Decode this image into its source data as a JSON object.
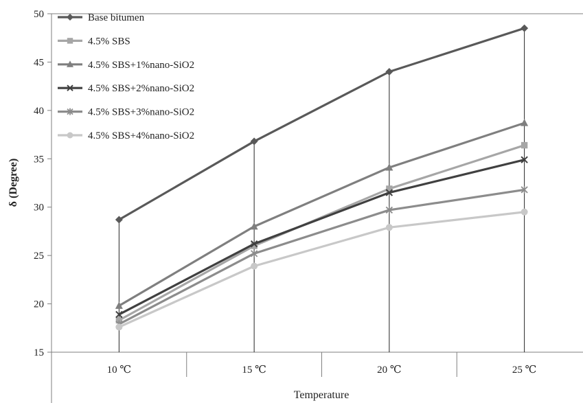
{
  "chart_data": {
    "type": "line",
    "title": "",
    "xlabel": "Temperature",
    "ylabel": "δ (Degree)",
    "categories": [
      "10 ℃",
      "15 ℃",
      "20 ℃",
      "25 ℃"
    ],
    "ylim": [
      15,
      50
    ],
    "yticks": [
      15,
      20,
      25,
      30,
      35,
      40,
      45,
      50
    ],
    "drop_lines": true,
    "legend_position": "top-left",
    "series": [
      {
        "name": "Base bitumen",
        "values": [
          28.7,
          36.8,
          44.0,
          48.5
        ],
        "color": "#595959",
        "marker": "diamond"
      },
      {
        "name": "4.5% SBS",
        "values": [
          18.3,
          26.0,
          31.9,
          36.4
        ],
        "color": "#a6a6a6",
        "marker": "square"
      },
      {
        "name": "4.5% SBS+1%nano-SiO2",
        "values": [
          19.8,
          28.0,
          34.1,
          38.7
        ],
        "color": "#7f7f7f",
        "marker": "triangle"
      },
      {
        "name": "4.5% SBS+2%nano-SiO2",
        "values": [
          18.9,
          26.2,
          31.5,
          34.9
        ],
        "color": "#404040",
        "marker": "x"
      },
      {
        "name": "4.5% SBS+3%nano-SiO2",
        "values": [
          17.9,
          25.2,
          29.7,
          31.8
        ],
        "color": "#8c8c8c",
        "marker": "star"
      },
      {
        "name": "4.5% SBS+4%nano-SiO2",
        "values": [
          17.6,
          23.9,
          27.9,
          29.5
        ],
        "color": "#c8c8c8",
        "marker": "circle"
      }
    ]
  }
}
